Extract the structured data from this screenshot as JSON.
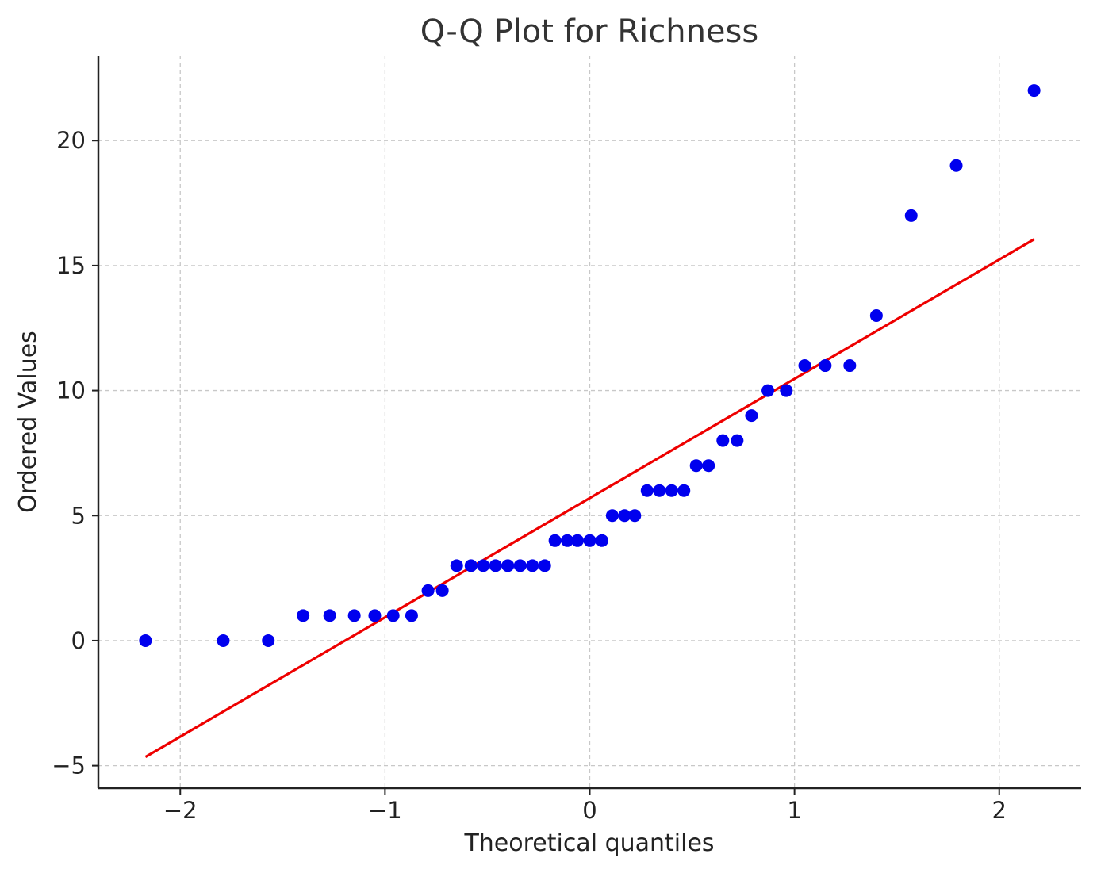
{
  "chart_data": {
    "type": "scatter",
    "title": "Q-Q Plot for Richness",
    "xlabel": "Theoretical quantiles",
    "ylabel": "Ordered Values",
    "xlim": [
      -2.4,
      2.4
    ],
    "ylim": [
      -5.9,
      23.4
    ],
    "xticks": [
      -2,
      -1,
      0,
      1,
      2
    ],
    "xtick_labels": [
      "−2",
      "−1",
      "0",
      "1",
      "2"
    ],
    "yticks": [
      -5,
      0,
      5,
      10,
      15,
      20
    ],
    "ytick_labels": [
      "−5",
      "0",
      "5",
      "10",
      "15",
      "20"
    ],
    "grid": true,
    "series": [
      {
        "kind": "scatter",
        "color": "#0000ee",
        "x": [
          -2.17,
          -1.79,
          -1.57,
          -1.4,
          -1.27,
          -1.15,
          -1.05,
          -0.96,
          -0.87,
          -0.79,
          -0.72,
          -0.65,
          -0.58,
          -0.52,
          -0.46,
          -0.4,
          -0.34,
          -0.28,
          -0.22,
          -0.17,
          -0.11,
          -0.06,
          0.0,
          0.06,
          0.11,
          0.17,
          0.22,
          0.28,
          0.34,
          0.4,
          0.46,
          0.52,
          0.58,
          0.65,
          0.72,
          0.79,
          0.87,
          0.96,
          1.05,
          1.15,
          1.27,
          1.4,
          1.57,
          1.79,
          2.17
        ],
        "y": [
          0,
          0,
          0,
          1,
          1,
          1,
          1,
          1,
          1,
          2,
          2,
          3,
          3,
          3,
          3,
          3,
          3,
          3,
          3,
          4,
          4,
          4,
          4,
          4,
          5,
          5,
          5,
          6,
          6,
          6,
          6,
          7,
          7,
          8,
          8,
          9,
          10,
          10,
          11,
          11,
          11,
          13,
          17,
          19,
          22
        ]
      },
      {
        "kind": "line",
        "color": "#ee0000",
        "x": [
          -2.17,
          2.17
        ],
        "y": [
          -4.65,
          16.05
        ]
      }
    ]
  }
}
